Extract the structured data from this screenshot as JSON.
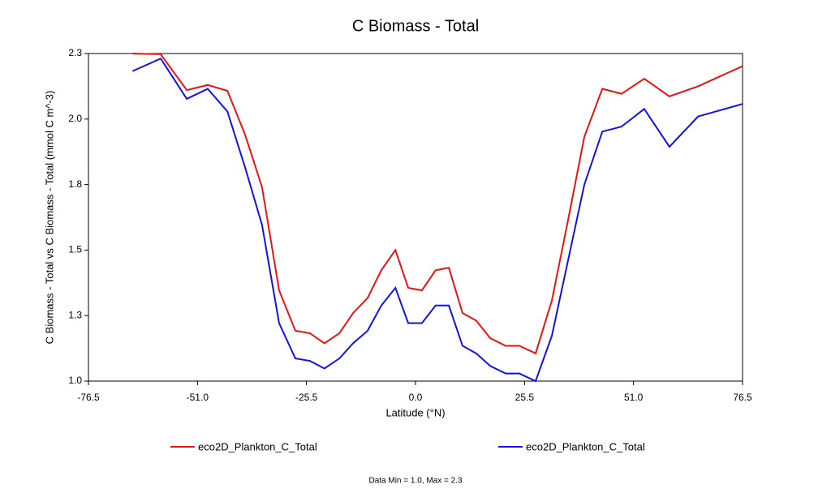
{
  "chart_data": {
    "type": "line",
    "title": "C Biomass - Total",
    "x_label": "Latitude (°N)",
    "y_label": "C Biomass - Total vs C Biomass - Total (mmol C m^-3)",
    "footnote": "Data Min = 1.0, Max = 2.3",
    "x": [
      -66.2,
      -59.6,
      -53.5,
      -48.6,
      -44.0,
      -39.9,
      -35.9,
      -31.9,
      -28.1,
      -24.7,
      -21.3,
      -17.8,
      -14.6,
      -11.2,
      -8.0,
      -4.7,
      -1.7,
      1.5,
      4.7,
      7.8,
      11.0,
      14.2,
      17.5,
      21.1,
      24.3,
      28.1,
      31.9,
      35.7,
      39.5,
      43.7,
      48.2,
      53.5,
      59.4,
      66.1,
      76.5
    ],
    "series": [
      {
        "name": "eco2D_Plankton_C_Total",
        "color": "#ee1111",
        "values": [
          2.3,
          2.297,
          2.155,
          2.175,
          2.152,
          1.98,
          1.77,
          1.36,
          1.2,
          1.19,
          1.15,
          1.19,
          1.27,
          1.33,
          1.44,
          1.52,
          1.37,
          1.36,
          1.44,
          1.45,
          1.27,
          1.24,
          1.17,
          1.14,
          1.14,
          1.11,
          1.32,
          1.64,
          1.97,
          2.16,
          2.14,
          2.2,
          2.13,
          2.17,
          2.25
        ]
      },
      {
        "name": "eco2D_Plankton_C_Total",
        "color": "#1111ee",
        "values": [
          2.23,
          2.28,
          2.12,
          2.16,
          2.07,
          1.85,
          1.62,
          1.23,
          1.09,
          1.08,
          1.05,
          1.09,
          1.15,
          1.2,
          1.3,
          1.37,
          1.23,
          1.23,
          1.3,
          1.3,
          1.14,
          1.11,
          1.06,
          1.03,
          1.03,
          1.0,
          1.18,
          1.48,
          1.78,
          1.99,
          2.01,
          2.08,
          1.93,
          2.05,
          2.1
        ]
      }
    ],
    "xlim": [
      -76.5,
      76.5
    ],
    "xticks": [
      -76.5,
      {
        "value": -51,
        "label": "-51.0"
      },
      -25.5,
      {
        "value": 0,
        "label": "0.0"
      },
      25.5,
      {
        "value": 51,
        "label": "51.0"
      },
      76.5
    ],
    "ylim": [
      1.0,
      2.3
    ],
    "yticks": [
      {
        "value": 1.0,
        "label": "1.0"
      },
      {
        "value": 1.26,
        "label": "1.3"
      },
      {
        "value": 1.52,
        "label": "1.5"
      },
      {
        "value": 1.78,
        "label": "1.8"
      },
      {
        "value": 2.04,
        "label": "2.0"
      },
      2.3
    ]
  }
}
